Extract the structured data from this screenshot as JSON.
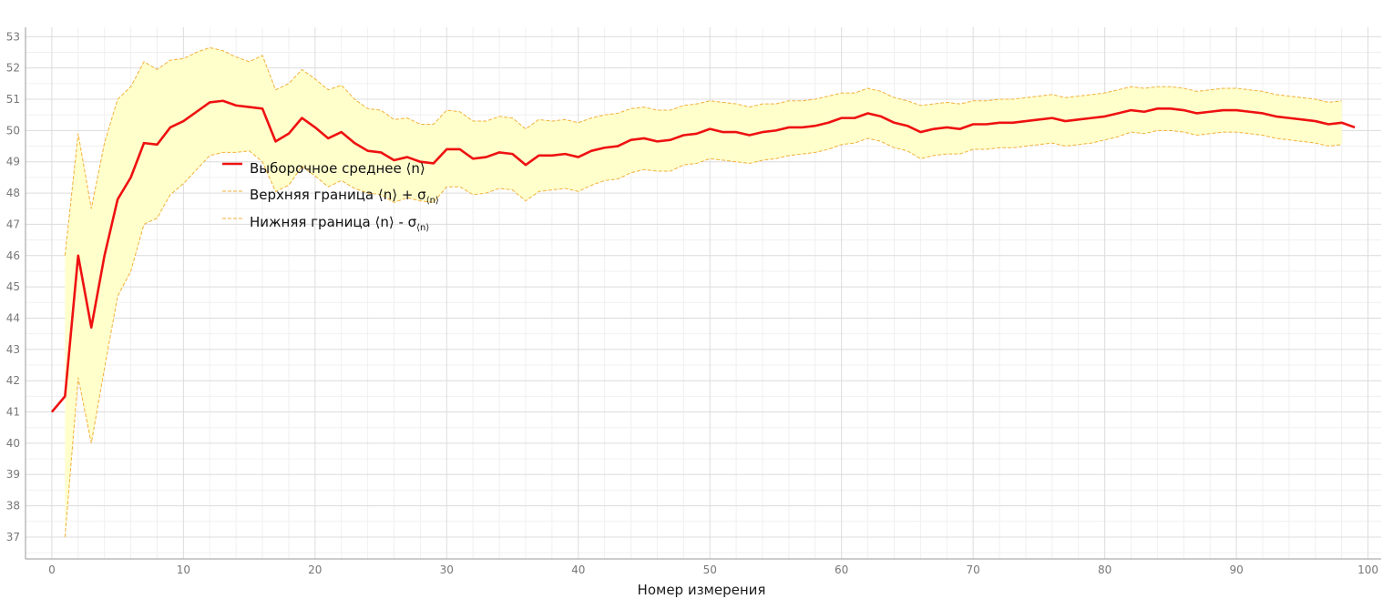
{
  "chart_data": {
    "type": "line",
    "title": "",
    "xlabel": "Номер измерения",
    "ylabel": "",
    "xlim": [
      -2,
      101
    ],
    "ylim": [
      36.3,
      53.3
    ],
    "x_ticks": [
      0,
      10,
      20,
      30,
      40,
      50,
      60,
      70,
      80,
      90,
      100
    ],
    "y_ticks": [
      37,
      38,
      39,
      40,
      41,
      42,
      43,
      44,
      45,
      46,
      47,
      48,
      49,
      50,
      51,
      52,
      53
    ],
    "grid": true,
    "legend_position": "upper-left inside",
    "colors": {
      "mean": "#ee1111",
      "band_line": "#f2b13a",
      "band_fill": "#ffffcc"
    },
    "legend": {
      "mean": {
        "text": "Выборочное среднее ⟨n⟩",
        "sub": ""
      },
      "upper": {
        "text": "Верхняя граница ⟨n⟩ + σ",
        "sub": "⟨n⟩"
      },
      "lower": {
        "text": "Нижняя граница ⟨n⟩ - σ",
        "sub": "⟨n⟩"
      }
    },
    "series": [
      {
        "key": "mean",
        "values": [
          41.0,
          41.5,
          46.0,
          43.7,
          46.0,
          47.8,
          48.5,
          49.6,
          49.55,
          50.1,
          50.3,
          50.6,
          50.9,
          50.95,
          50.8,
          50.75,
          50.7,
          49.65,
          49.9,
          50.4,
          50.1,
          49.75,
          49.95,
          49.6,
          49.35,
          49.3,
          49.05,
          49.15,
          49.0,
          48.95,
          49.4,
          49.4,
          49.1,
          49.15,
          49.3,
          49.25,
          48.9,
          49.2,
          49.2,
          49.25,
          49.15,
          49.35,
          49.45,
          49.5,
          49.7,
          49.75,
          49.65,
          49.7,
          49.85,
          49.9,
          50.05,
          49.95,
          49.95,
          49.85,
          49.95,
          50.0,
          50.1,
          50.1,
          50.15,
          50.25,
          50.4,
          50.4,
          50.55,
          50.45,
          50.25,
          50.15,
          49.95,
          50.05,
          50.1,
          50.05,
          50.2,
          50.2,
          50.25,
          50.25,
          50.3,
          50.35,
          50.4,
          50.3,
          50.35,
          50.4,
          50.45,
          50.55,
          50.65,
          50.6,
          50.7,
          50.7,
          50.65,
          50.55,
          50.6,
          50.65,
          50.65,
          50.6,
          50.55,
          50.45,
          50.4,
          50.35,
          50.3,
          50.2,
          50.25,
          50.1
        ]
      },
      {
        "key": "upper",
        "x_start": 1,
        "values": [
          46.0,
          49.9,
          47.5,
          49.6,
          51.0,
          51.4,
          52.2,
          51.95,
          52.25,
          52.3,
          52.5,
          52.65,
          52.55,
          52.35,
          52.2,
          52.4,
          51.3,
          51.5,
          51.95,
          51.65,
          51.3,
          51.45,
          51.0,
          50.7,
          50.65,
          50.35,
          50.4,
          50.2,
          50.2,
          50.65,
          50.6,
          50.3,
          50.3,
          50.45,
          50.4,
          50.05,
          50.35,
          50.3,
          50.35,
          50.25,
          50.4,
          50.5,
          50.55,
          50.7,
          50.75,
          50.65,
          50.65,
          50.8,
          50.85,
          50.95,
          50.9,
          50.85,
          50.75,
          50.85,
          50.85,
          50.95,
          50.95,
          51.0,
          51.1,
          51.2,
          51.2,
          51.35,
          51.25,
          51.05,
          50.95,
          50.8,
          50.85,
          50.9,
          50.85,
          50.95,
          50.95,
          51.0,
          51.0,
          51.05,
          51.1,
          51.15,
          51.05,
          51.1,
          51.15,
          51.2,
          51.3,
          51.4,
          51.35,
          51.4,
          51.4,
          51.35,
          51.25,
          51.3,
          51.35,
          51.35,
          51.3,
          51.25,
          51.15,
          51.1,
          51.05,
          51.0,
          50.9,
          50.95
        ]
      },
      {
        "key": "lower",
        "x_start": 1,
        "values": [
          37.0,
          42.1,
          40.0,
          42.4,
          44.7,
          45.5,
          47.0,
          47.2,
          47.95,
          48.3,
          48.75,
          49.2,
          49.3,
          49.3,
          49.35,
          49.0,
          48.05,
          48.25,
          48.85,
          48.55,
          48.2,
          48.4,
          48.15,
          48.0,
          47.95,
          47.7,
          47.85,
          47.75,
          47.7,
          48.2,
          48.2,
          47.95,
          48.0,
          48.15,
          48.1,
          47.75,
          48.05,
          48.1,
          48.15,
          48.05,
          48.25,
          48.4,
          48.45,
          48.65,
          48.75,
          48.7,
          48.7,
          48.9,
          48.95,
          49.1,
          49.05,
          49.0,
          48.95,
          49.05,
          49.1,
          49.2,
          49.25,
          49.3,
          49.4,
          49.55,
          49.6,
          49.75,
          49.65,
          49.45,
          49.35,
          49.1,
          49.2,
          49.25,
          49.25,
          49.4,
          49.4,
          49.45,
          49.45,
          49.5,
          49.55,
          49.6,
          49.5,
          49.55,
          49.6,
          49.7,
          49.8,
          49.95,
          49.9,
          50.0,
          50.0,
          49.95,
          49.85,
          49.9,
          49.95,
          49.95,
          49.9,
          49.85,
          49.75,
          49.7,
          49.65,
          49.6,
          49.5,
          49.55
        ]
      }
    ]
  }
}
